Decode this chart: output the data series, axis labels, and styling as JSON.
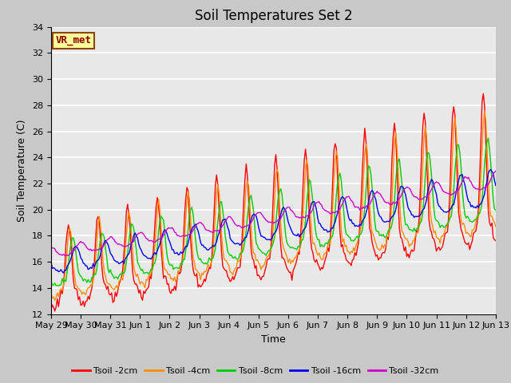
{
  "title": "Soil Temperatures Set 2",
  "xlabel": "Time",
  "ylabel": "Soil Temperature (C)",
  "ylim": [
    12,
    34
  ],
  "yticks": [
    12,
    14,
    16,
    18,
    20,
    22,
    24,
    26,
    28,
    30,
    32,
    34
  ],
  "fig_bg": "#c8c8c8",
  "plot_bg": "#e8e8e8",
  "annotation_text": "VR_met",
  "annotation_color": "#8B0000",
  "annotation_bg": "#FFFF99",
  "series_colors": {
    "Tsoil -2cm": "#FF0000",
    "Tsoil -4cm": "#FF8C00",
    "Tsoil -8cm": "#00CC00",
    "Tsoil -16cm": "#0000EE",
    "Tsoil -32cm": "#CC00CC"
  },
  "tick_label_fontsize": 8,
  "axis_label_fontsize": 9,
  "title_fontsize": 12,
  "tick_labels": [
    "May 29",
    "May 30",
    "May 31",
    "Jun 1",
    "Jun 2",
    "Jun 3",
    "Jun 4",
    "Jun 5",
    "Jun 6",
    "Jun 7",
    "Jun 8",
    "Jun 9",
    "Jun 10",
    "Jun 11",
    "Jun 12",
    "Jun 13"
  ]
}
